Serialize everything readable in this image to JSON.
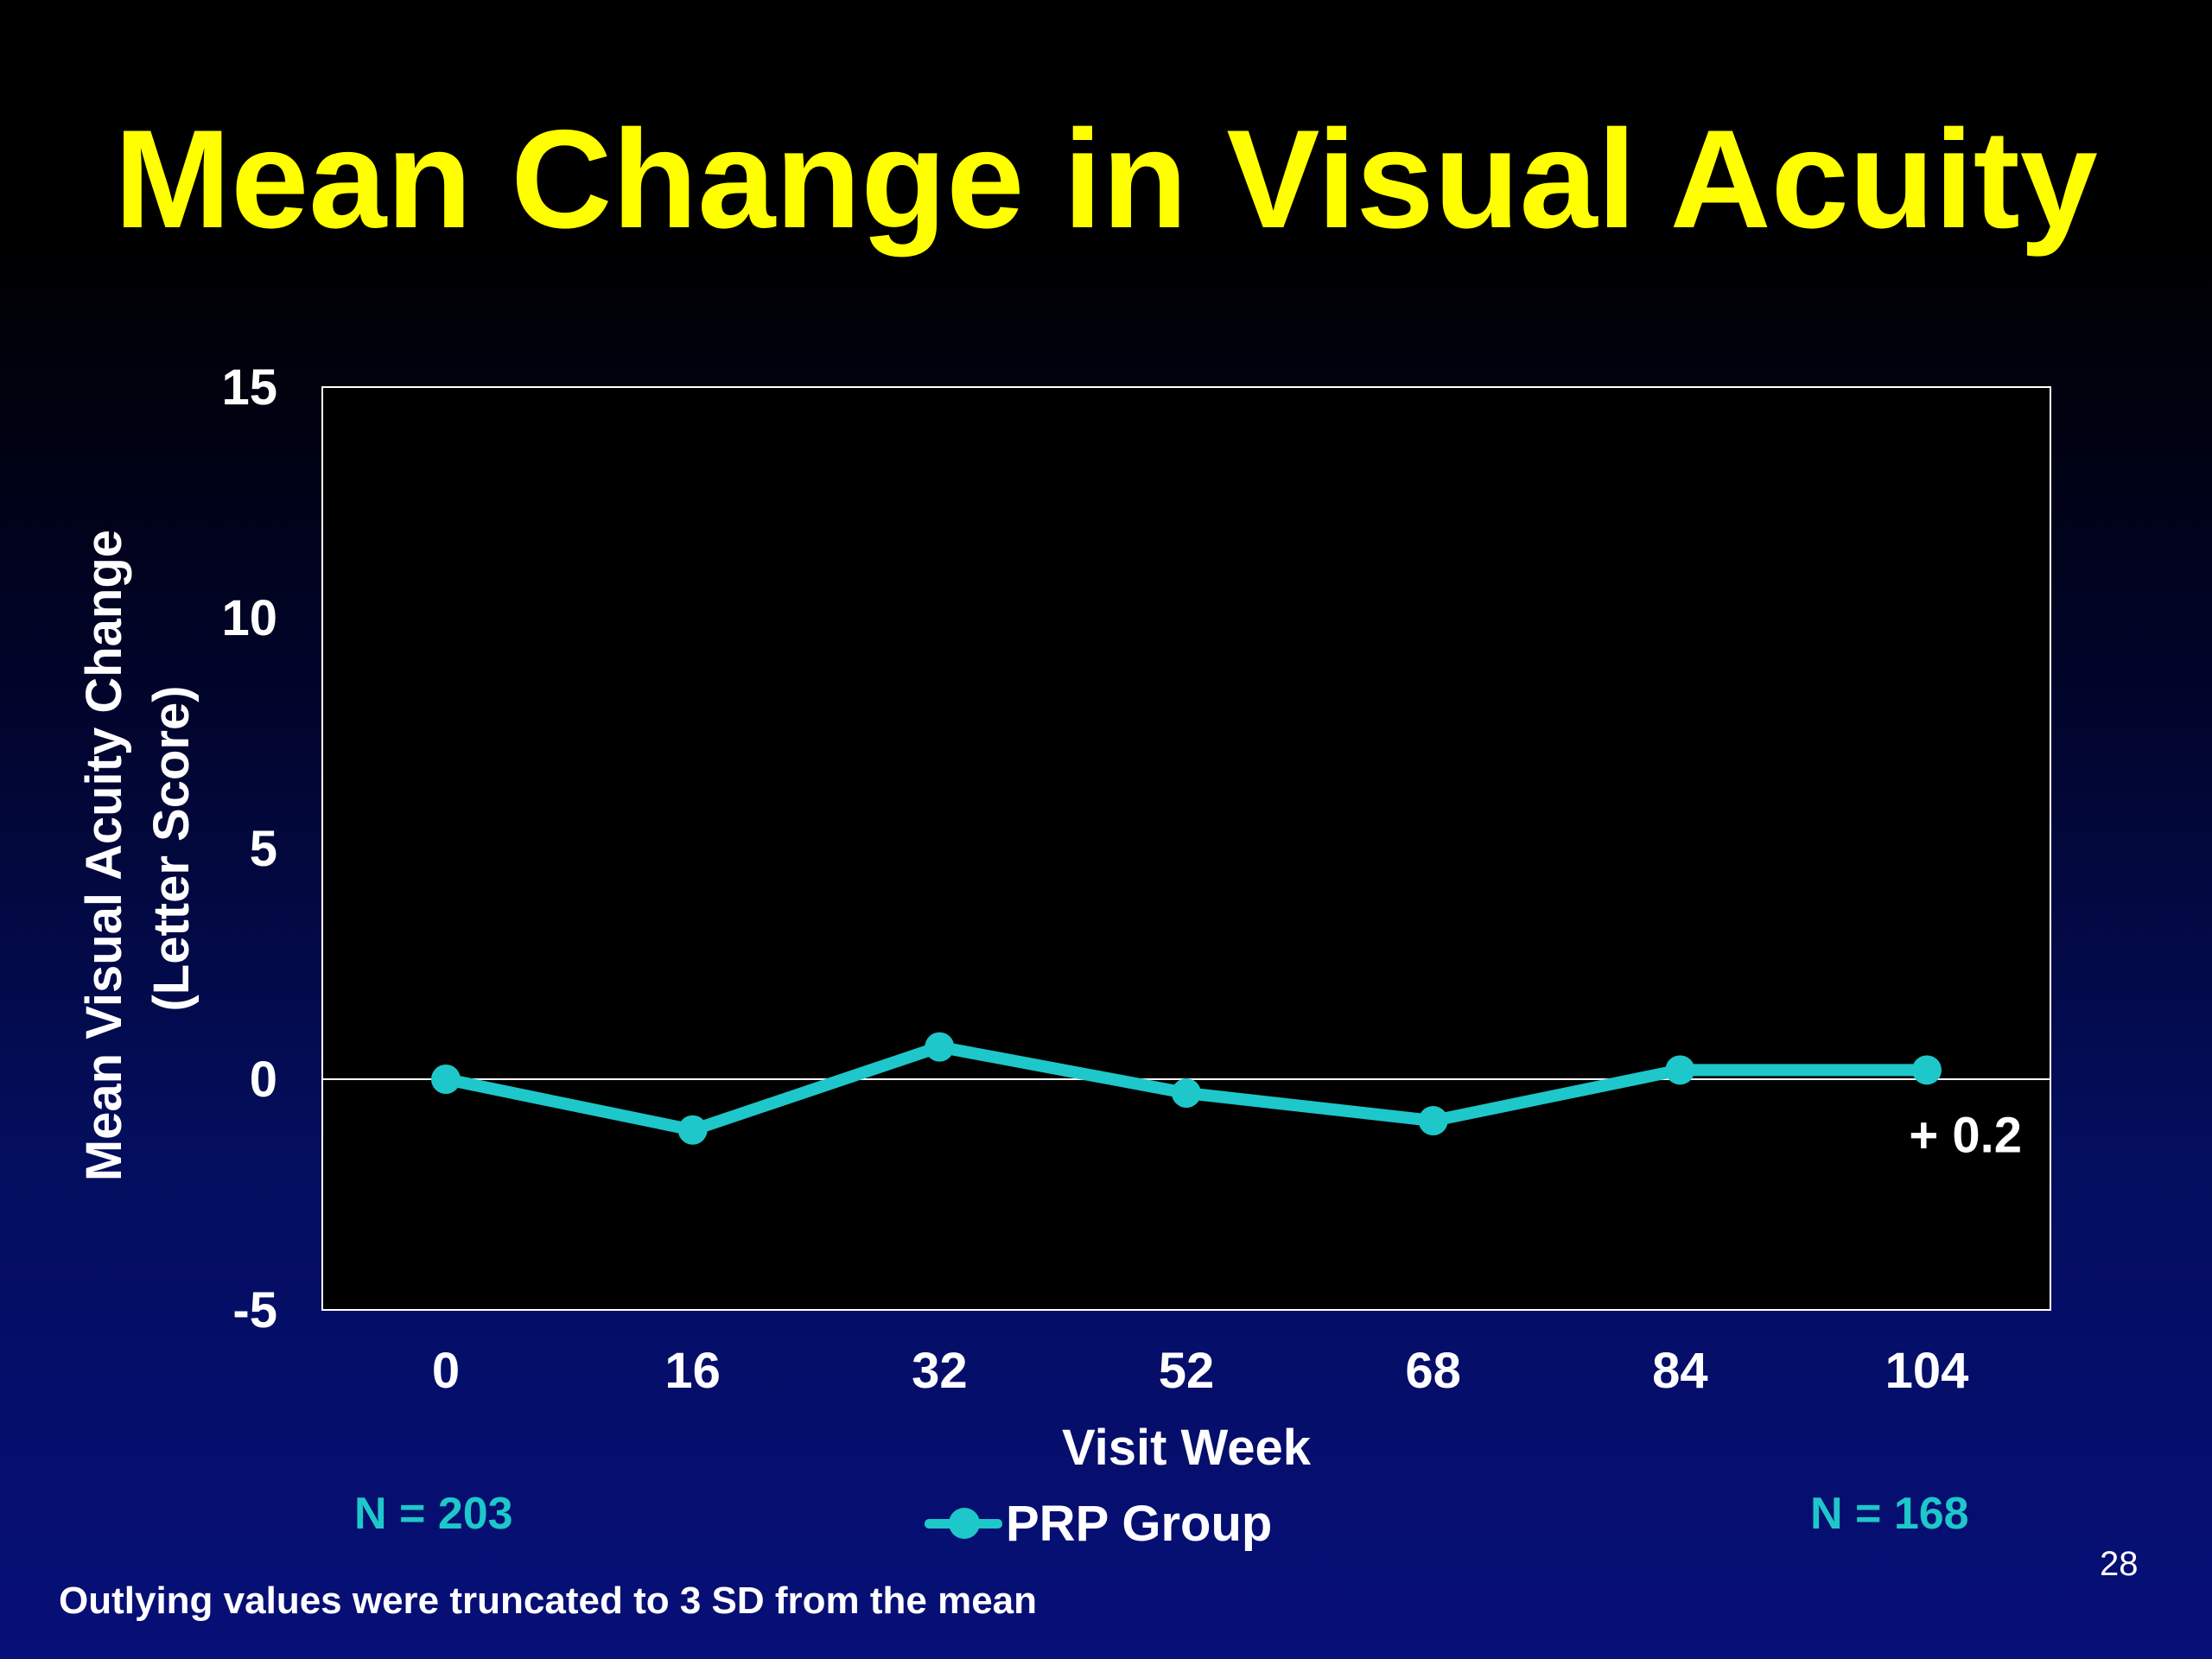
{
  "slide": {
    "title": "Mean Change in Visual Acuity",
    "page_number": "28",
    "footnote": "Outlying values were truncated to 3 SD from the mean",
    "n_start": "N = 203",
    "n_end": "N = 168"
  },
  "colors": {
    "title": "#ffff00",
    "series": "#1ec7c9",
    "plot_background": "#000000",
    "text": "#ffffff"
  },
  "chart_data": {
    "type": "line",
    "title": "Mean Change in Visual Acuity",
    "xlabel": "Visit Week",
    "ylabel_line1": "Mean Visual Acuity Change",
    "ylabel_line2": "(Letter Score)",
    "categories": [
      "0",
      "16",
      "32",
      "52",
      "68",
      "84",
      "104"
    ],
    "series": [
      {
        "name": "PRP Group",
        "color": "#1ec7c9",
        "values": [
          0,
          -1.1,
          0.7,
          -0.3,
          -0.9,
          0.2,
          0.2
        ]
      }
    ],
    "ylim": [
      -5,
      15
    ],
    "yticks": [
      -5,
      0,
      5,
      10,
      15
    ],
    "reference_line_y": 0,
    "grid": false,
    "legend_position": "bottom",
    "annotations": [
      {
        "text": "+ 0.2",
        "category": "104",
        "value": 0.2
      }
    ]
  }
}
